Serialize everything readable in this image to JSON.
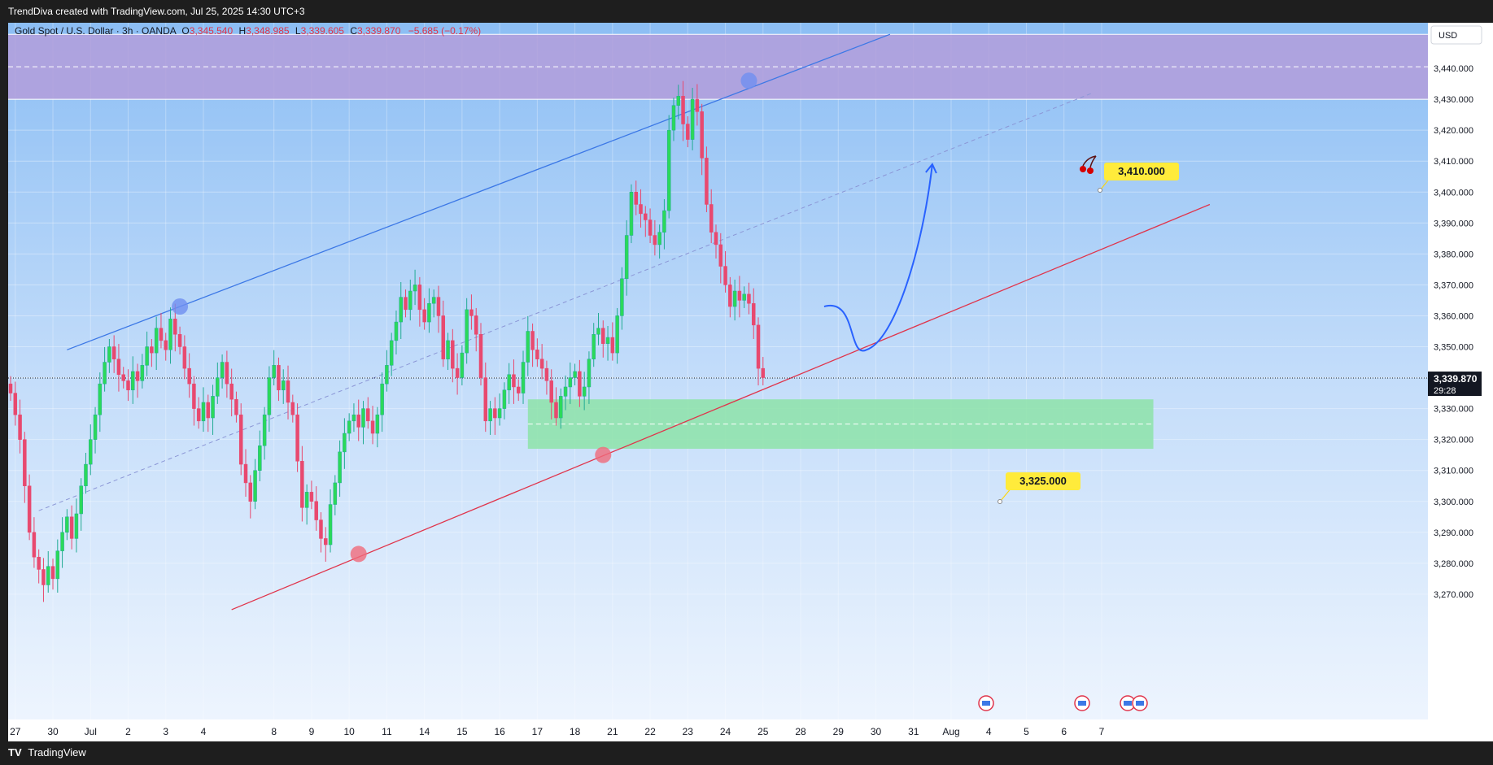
{
  "header": {
    "caption": "TrendDiva created with TradingView.com, Jul 25, 2025 14:30 UTC+3"
  },
  "footer": {
    "brand": "TradingView"
  },
  "legend": {
    "symbol": "Gold Spot / U.S. Dollar · 3h · OANDA",
    "o_label": "O",
    "o": "3,345.540",
    "h_label": "H",
    "h": "3,348.985",
    "l_label": "L",
    "l": "3,339.605",
    "c_label": "C",
    "c": "3,339.870",
    "change": "−5.685 (−0.17%)"
  },
  "currency_button": "USD",
  "last_price": {
    "value": "3,339.870",
    "countdown": "29:28"
  },
  "targets": {
    "upper": "3,410.000",
    "lower": "3,325.000"
  },
  "colors": {
    "up": "#22ab94",
    "up_body": "#2bd95a",
    "down": "#e8496f",
    "channel_upper": "#3c78e6",
    "channel_lower": "#e0344b",
    "resistance_zone": "#b39ddb",
    "support_zone": "#8de3a8",
    "target_label": "#ffeb3b"
  },
  "chart_data": {
    "type": "candlestick",
    "symbol": "Gold Spot / U.S. Dollar",
    "interval": "3h",
    "ylim": [
      3265,
      3455
    ],
    "y_ticks": [
      3270,
      3280,
      3290,
      3300,
      3310,
      3320,
      3330,
      3340,
      3350,
      3360,
      3370,
      3380,
      3390,
      3400,
      3410,
      3420,
      3430,
      3440,
      3450
    ],
    "y_tick_labels": [
      "3,270.000",
      "3,280.000",
      "3,290.000",
      "3,300.000",
      "3,310.000",
      "3,320.000",
      "3,330.000",
      "3,340.000",
      "3,350.000",
      "3,360.000",
      "3,370.000",
      "3,380.000",
      "3,390.000",
      "3,400.000",
      "3,410.000",
      "3,420.000",
      "3,430.000",
      "3,440.000",
      "3,450.000"
    ],
    "x_ticks": [
      {
        "label": "27",
        "i": 1
      },
      {
        "label": "30",
        "i": 9
      },
      {
        "label": "Jul",
        "i": 17
      },
      {
        "label": "2",
        "i": 25
      },
      {
        "label": "3",
        "i": 33
      },
      {
        "label": "4",
        "i": 41
      },
      {
        "label": "8",
        "i": 56
      },
      {
        "label": "9",
        "i": 64
      },
      {
        "label": "10",
        "i": 72
      },
      {
        "label": "11",
        "i": 80
      },
      {
        "label": "14",
        "i": 88
      },
      {
        "label": "15",
        "i": 96
      },
      {
        "label": "16",
        "i": 104
      },
      {
        "label": "17",
        "i": 112
      },
      {
        "label": "18",
        "i": 120
      },
      {
        "label": "21",
        "i": 128
      },
      {
        "label": "22",
        "i": 136
      },
      {
        "label": "23",
        "i": 144
      },
      {
        "label": "24",
        "i": 152
      },
      {
        "label": "25",
        "i": 160
      },
      {
        "label": "28",
        "i": 168
      },
      {
        "label": "29",
        "i": 176
      },
      {
        "label": "30",
        "i": 184
      },
      {
        "label": "31",
        "i": 192
      },
      {
        "label": "Aug",
        "i": 200
      },
      {
        "label": "4",
        "i": 208
      },
      {
        "label": "5",
        "i": 216
      },
      {
        "label": "6",
        "i": 224
      },
      {
        "label": "7",
        "i": 232
      }
    ],
    "closes": [
      3335,
      3328,
      3320,
      3305,
      3290,
      3282,
      3278,
      3273,
      3279,
      3275,
      3284,
      3290,
      3295,
      3288,
      3296,
      3305,
      3312,
      3320,
      3328,
      3338,
      3345,
      3350,
      3346,
      3341,
      3339,
      3336,
      3342,
      3339,
      3344,
      3350,
      3348,
      3356,
      3352,
      3349,
      3359,
      3354,
      3350,
      3343,
      3338,
      3330,
      3326,
      3332,
      3327,
      3334,
      3340,
      3345,
      3338,
      3333,
      3328,
      3312,
      3306,
      3300,
      3310,
      3318,
      3328,
      3340,
      3344,
      3336,
      3339,
      3332,
      3328,
      3313,
      3298,
      3303,
      3300,
      3294,
      3288,
      3286,
      3299,
      3306,
      3316,
      3322,
      3326,
      3328,
      3324,
      3330,
      3326,
      3322,
      3328,
      3338,
      3344,
      3352,
      3358,
      3366,
      3362,
      3368,
      3370,
      3362,
      3358,
      3364,
      3366,
      3360,
      3346,
      3352,
      3343,
      3340,
      3348,
      3362,
      3360,
      3354,
      3340,
      3326,
      3330,
      3327,
      3330,
      3336,
      3341,
      3337,
      3335,
      3345,
      3355,
      3349,
      3346,
      3343,
      3339,
      3332,
      3327,
      3334,
      3337,
      3340,
      3342,
      3334,
      3337,
      3346,
      3354,
      3356,
      3351,
      3353,
      3348,
      3360,
      3372,
      3386,
      3400,
      3396,
      3393,
      3391,
      3386,
      3383,
      3387,
      3394,
      3420,
      3428,
      3431,
      3422,
      3417,
      3430,
      3426,
      3411,
      3396,
      3387,
      3383,
      3376,
      3370,
      3363,
      3368,
      3365,
      3367,
      3364,
      3357,
      3343,
      3340
    ],
    "channel": {
      "upper": {
        "x": [
          "Jun 26",
          "Jul 3",
          "Jul 23",
          "Jul 28"
        ],
        "y": [
          3349,
          3363,
          3436,
          3455
        ]
      },
      "lower": {
        "x": [
          "Jul 4",
          "Jul 9",
          "Jul 17",
          "Jul 25"
        ],
        "y": [
          3265,
          3283,
          3315,
          3346
        ]
      }
    },
    "zones": {
      "resistance": [
        3430,
        3451
      ],
      "support": [
        3317,
        3333
      ]
    },
    "targets": [
      3410,
      3325
    ],
    "last_close": 3339.87
  }
}
